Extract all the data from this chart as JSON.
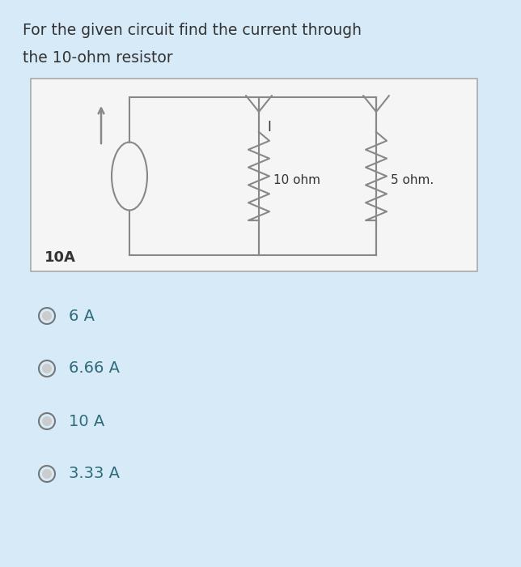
{
  "title_line1": "For the given circuit find the current through",
  "title_line2": "the 10-ohm resistor",
  "bg_color": "#d6eaf8",
  "circuit_bg": "#f5f5f5",
  "wire_color": "#888888",
  "text_color": "#2e6b7a",
  "label_color": "#333333",
  "choices": [
    "6 A",
    "6.66 A",
    "10 A",
    "3.33 A"
  ],
  "label_10A": "10A",
  "label_I": "I",
  "label_10ohm": "10 ohm",
  "label_5ohm": "5 ohm."
}
